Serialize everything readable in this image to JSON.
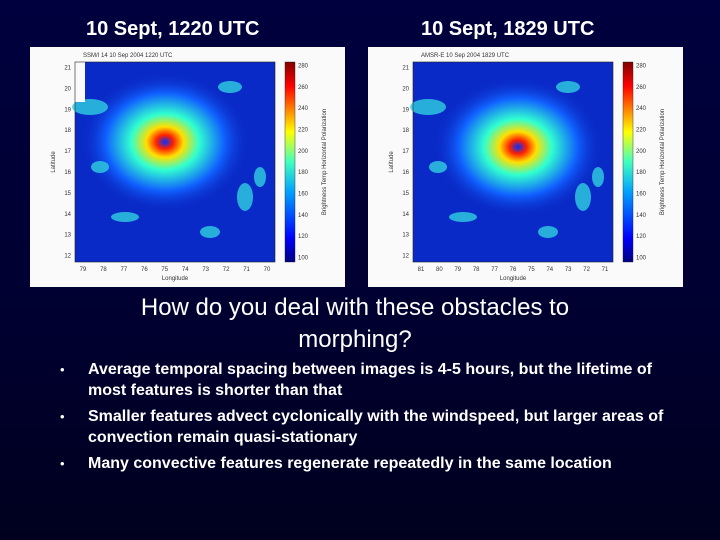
{
  "headings": [
    "10 Sept, 1220 UTC",
    "10 Sept, 1829 UTC"
  ],
  "images": [
    {
      "caption": "SSM/I 14   10 Sep 2004 1220 UTC",
      "y_label": "Latitude",
      "x_label": "Longitude",
      "yticks": [
        21,
        20,
        19,
        18,
        17,
        16,
        15,
        14,
        13,
        12
      ],
      "xticks": [
        79,
        78,
        77,
        76,
        75,
        74,
        73,
        72,
        71,
        70
      ],
      "colorbar_ticks": [
        280,
        260,
        240,
        220,
        200,
        180,
        160,
        140,
        120,
        100
      ],
      "colorbar_label": "Brightness Temp Horizontal Polarization"
    },
    {
      "caption": "AMSR-E   10 Sep 2004 1829 UTC",
      "y_label": "Latitude",
      "x_label": "Longitude",
      "yticks": [
        21,
        20,
        19,
        18,
        17,
        16,
        15,
        14,
        13,
        12
      ],
      "xticks": [
        81,
        80,
        79,
        78,
        77,
        76,
        75,
        74,
        73,
        72,
        71
      ],
      "colorbar_ticks": [
        280,
        260,
        240,
        220,
        200,
        180,
        160,
        140,
        120,
        100
      ],
      "colorbar_label": "Brightness Temp Horizontal Polarization"
    }
  ],
  "question": "How do you deal with these obstacles to morphing?",
  "bullets": [
    "Average temporal spacing between images is 4-5 hours, but the lifetime of most features is shorter than that",
    "Smaller features advect cyclonically with the windspeed, but larger areas of convection remain quasi-stationary",
    "Many convective features regenerate repeatedly in the same location"
  ]
}
